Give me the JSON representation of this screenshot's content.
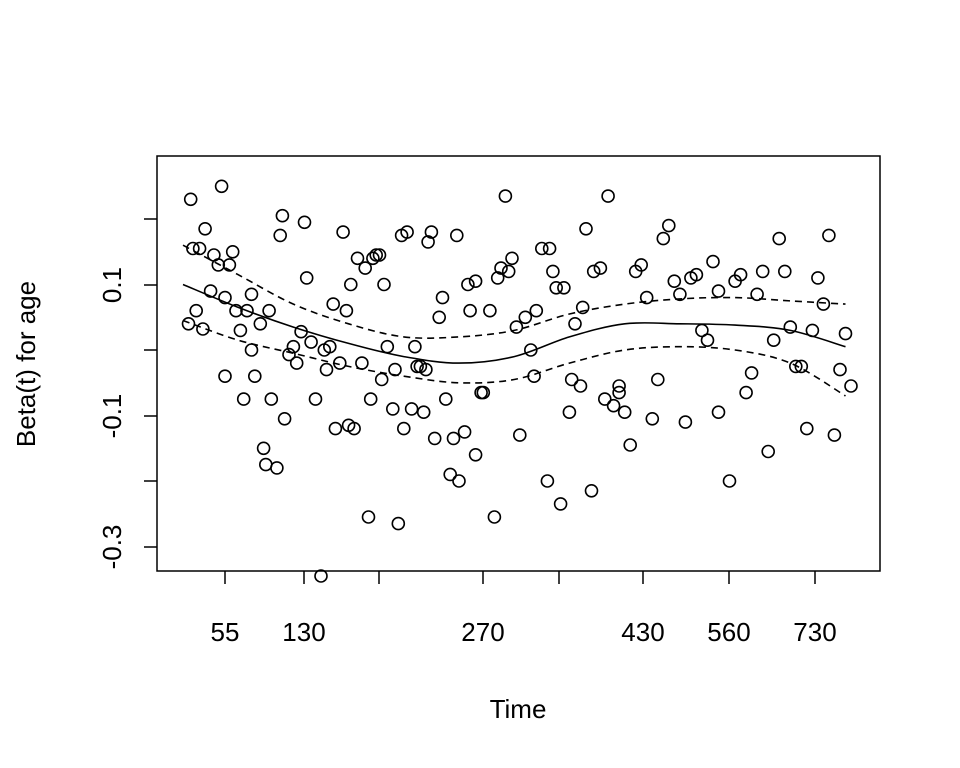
{
  "chart_data": {
    "type": "scatter",
    "title": "",
    "xlabel": "Time",
    "ylabel": "Beta(t) for age",
    "x_tick_labels": [
      "55",
      "130",
      "270",
      "430",
      "560",
      "730"
    ],
    "y_tick_labels": [
      "-0.3",
      "-0.1",
      "0.1"
    ],
    "y_ticks": [
      -0.3,
      -0.1,
      0.1
    ],
    "ylim": [
      -0.37,
      0.29
    ],
    "x_scale": "rank-transformed",
    "grid": false,
    "points": [
      [
        0.005,
        0.04
      ],
      [
        0.007,
        0.23
      ],
      [
        0.009,
        0.155
      ],
      [
        0.012,
        0.06
      ],
      [
        0.015,
        0.155
      ],
      [
        0.018,
        0.032
      ],
      [
        0.02,
        0.185
      ],
      [
        0.025,
        0.09
      ],
      [
        0.028,
        0.145
      ],
      [
        0.032,
        0.13
      ],
      [
        0.035,
        0.25
      ],
      [
        0.038,
        0.08
      ],
      [
        0.038,
        -0.04
      ],
      [
        0.042,
        0.13
      ],
      [
        0.045,
        0.15
      ],
      [
        0.048,
        0.06
      ],
      [
        0.052,
        0.03
      ],
      [
        0.055,
        -0.075
      ],
      [
        0.058,
        0.06
      ],
      [
        0.062,
        0.085
      ],
      [
        0.062,
        0.0
      ],
      [
        0.065,
        -0.04
      ],
      [
        0.07,
        0.04
      ],
      [
        0.073,
        -0.15
      ],
      [
        0.075,
        -0.175
      ],
      [
        0.078,
        0.06
      ],
      [
        0.08,
        -0.075
      ],
      [
        0.085,
        -0.18
      ],
      [
        0.088,
        0.175
      ],
      [
        0.09,
        0.205
      ],
      [
        0.092,
        -0.105
      ],
      [
        0.096,
        -0.007
      ],
      [
        0.1,
        0.005
      ],
      [
        0.103,
        -0.02
      ],
      [
        0.107,
        0.028
      ],
      [
        0.11,
        0.195
      ],
      [
        0.112,
        0.11
      ],
      [
        0.116,
        0.012
      ],
      [
        0.12,
        -0.075
      ],
      [
        0.125,
        -0.345
      ],
      [
        0.128,
        0.0
      ],
      [
        0.13,
        -0.03
      ],
      [
        0.133,
        0.005
      ],
      [
        0.136,
        0.07
      ],
      [
        0.138,
        -0.12
      ],
      [
        0.142,
        -0.02
      ],
      [
        0.145,
        0.18
      ],
      [
        0.148,
        0.06
      ],
      [
        0.15,
        -0.115
      ],
      [
        0.152,
        0.1
      ],
      [
        0.155,
        -0.12
      ],
      [
        0.158,
        0.14
      ],
      [
        0.162,
        -0.02
      ],
      [
        0.165,
        0.125
      ],
      [
        0.168,
        -0.255
      ],
      [
        0.17,
        -0.075
      ],
      [
        0.172,
        0.14
      ],
      [
        0.175,
        0.145
      ],
      [
        0.178,
        0.145
      ],
      [
        0.18,
        -0.045
      ],
      [
        0.182,
        0.1
      ],
      [
        0.185,
        0.005
      ],
      [
        0.19,
        -0.09
      ],
      [
        0.192,
        -0.03
      ],
      [
        0.195,
        -0.265
      ],
      [
        0.198,
        0.175
      ],
      [
        0.2,
        -0.12
      ],
      [
        0.203,
        0.18
      ],
      [
        0.207,
        -0.09
      ],
      [
        0.21,
        0.005
      ],
      [
        0.212,
        -0.025
      ],
      [
        0.215,
        -0.025
      ],
      [
        0.218,
        -0.095
      ],
      [
        0.22,
        -0.03
      ],
      [
        0.222,
        0.165
      ],
      [
        0.225,
        0.18
      ],
      [
        0.228,
        -0.135
      ],
      [
        0.232,
        0.05
      ],
      [
        0.235,
        0.08
      ],
      [
        0.238,
        -0.075
      ],
      [
        0.242,
        -0.19
      ],
      [
        0.245,
        -0.135
      ],
      [
        0.248,
        0.175
      ],
      [
        0.25,
        -0.2
      ],
      [
        0.255,
        -0.125
      ],
      [
        0.258,
        0.1
      ],
      [
        0.26,
        0.06
      ],
      [
        0.265,
        0.105
      ],
      [
        0.265,
        -0.16
      ],
      [
        0.27,
        -0.065
      ],
      [
        0.272,
        -0.065
      ],
      [
        0.278,
        0.06
      ],
      [
        0.282,
        -0.255
      ],
      [
        0.285,
        0.11
      ],
      [
        0.288,
        0.125
      ],
      [
        0.292,
        0.235
      ],
      [
        0.295,
        0.12
      ],
      [
        0.298,
        0.14
      ],
      [
        0.302,
        0.035
      ],
      [
        0.305,
        -0.13
      ],
      [
        0.31,
        0.05
      ],
      [
        0.315,
        0.0
      ],
      [
        0.318,
        -0.04
      ],
      [
        0.32,
        0.06
      ],
      [
        0.325,
        0.155
      ],
      [
        0.33,
        -0.2
      ],
      [
        0.332,
        0.155
      ],
      [
        0.335,
        0.12
      ],
      [
        0.338,
        0.095
      ],
      [
        0.342,
        -0.235
      ],
      [
        0.345,
        0.095
      ],
      [
        0.35,
        -0.095
      ],
      [
        0.352,
        -0.045
      ],
      [
        0.355,
        0.04
      ],
      [
        0.36,
        -0.055
      ],
      [
        0.362,
        0.065
      ],
      [
        0.365,
        0.185
      ],
      [
        0.37,
        -0.215
      ],
      [
        0.372,
        0.12
      ],
      [
        0.378,
        0.125
      ],
      [
        0.382,
        -0.075
      ],
      [
        0.385,
        0.235
      ],
      [
        0.39,
        -0.085
      ],
      [
        0.395,
        -0.055
      ],
      [
        0.395,
        -0.065
      ],
      [
        0.4,
        -0.095
      ],
      [
        0.405,
        -0.145
      ],
      [
        0.41,
        0.12
      ],
      [
        0.415,
        0.13
      ],
      [
        0.42,
        0.08
      ],
      [
        0.425,
        -0.105
      ],
      [
        0.43,
        -0.045
      ],
      [
        0.435,
        0.17
      ],
      [
        0.44,
        0.19
      ],
      [
        0.445,
        0.105
      ],
      [
        0.45,
        0.085
      ],
      [
        0.455,
        -0.11
      ],
      [
        0.46,
        0.11
      ],
      [
        0.465,
        0.115
      ],
      [
        0.47,
        0.03
      ],
      [
        0.475,
        0.015
      ],
      [
        0.48,
        0.135
      ],
      [
        0.485,
        0.09
      ],
      [
        0.485,
        -0.095
      ],
      [
        0.495,
        -0.2
      ],
      [
        0.5,
        0.105
      ],
      [
        0.505,
        0.115
      ],
      [
        0.51,
        -0.065
      ],
      [
        0.515,
        -0.035
      ],
      [
        0.52,
        0.085
      ],
      [
        0.525,
        0.12
      ],
      [
        0.53,
        -0.155
      ],
      [
        0.535,
        0.015
      ],
      [
        0.54,
        0.17
      ],
      [
        0.545,
        0.12
      ],
      [
        0.55,
        0.035
      ],
      [
        0.555,
        -0.025
      ],
      [
        0.56,
        -0.025
      ],
      [
        0.565,
        -0.12
      ],
      [
        0.57,
        0.03
      ],
      [
        0.575,
        0.11
      ],
      [
        0.58,
        0.07
      ],
      [
        0.585,
        0.175
      ],
      [
        0.59,
        -0.13
      ],
      [
        0.595,
        -0.03
      ],
      [
        0.6,
        0.025
      ],
      [
        0.605,
        -0.055
      ]
    ],
    "fit_line": [
      [
        0.0,
        0.1
      ],
      [
        0.05,
        0.065
      ],
      [
        0.1,
        0.035
      ],
      [
        0.15,
        0.01
      ],
      [
        0.2,
        -0.01
      ],
      [
        0.25,
        -0.02
      ],
      [
        0.3,
        -0.01
      ],
      [
        0.35,
        0.02
      ],
      [
        0.4,
        0.04
      ],
      [
        0.45,
        0.04
      ],
      [
        0.5,
        0.038
      ],
      [
        0.55,
        0.03
      ],
      [
        0.6,
        0.005
      ]
    ],
    "ci_upper": [
      [
        0.0,
        0.16
      ],
      [
        0.05,
        0.115
      ],
      [
        0.1,
        0.07
      ],
      [
        0.15,
        0.04
      ],
      [
        0.2,
        0.02
      ],
      [
        0.25,
        0.02
      ],
      [
        0.3,
        0.03
      ],
      [
        0.35,
        0.055
      ],
      [
        0.4,
        0.07
      ],
      [
        0.45,
        0.078
      ],
      [
        0.5,
        0.08
      ],
      [
        0.55,
        0.075
      ],
      [
        0.6,
        0.07
      ]
    ],
    "ci_lower": [
      [
        0.0,
        0.045
      ],
      [
        0.05,
        0.015
      ],
      [
        0.1,
        -0.005
      ],
      [
        0.15,
        -0.025
      ],
      [
        0.2,
        -0.04
      ],
      [
        0.25,
        -0.05
      ],
      [
        0.3,
        -0.045
      ],
      [
        0.35,
        -0.02
      ],
      [
        0.4,
        0.0
      ],
      [
        0.45,
        0.005
      ],
      [
        0.5,
        0.0
      ],
      [
        0.55,
        -0.02
      ],
      [
        0.6,
        -0.07
      ]
    ]
  }
}
